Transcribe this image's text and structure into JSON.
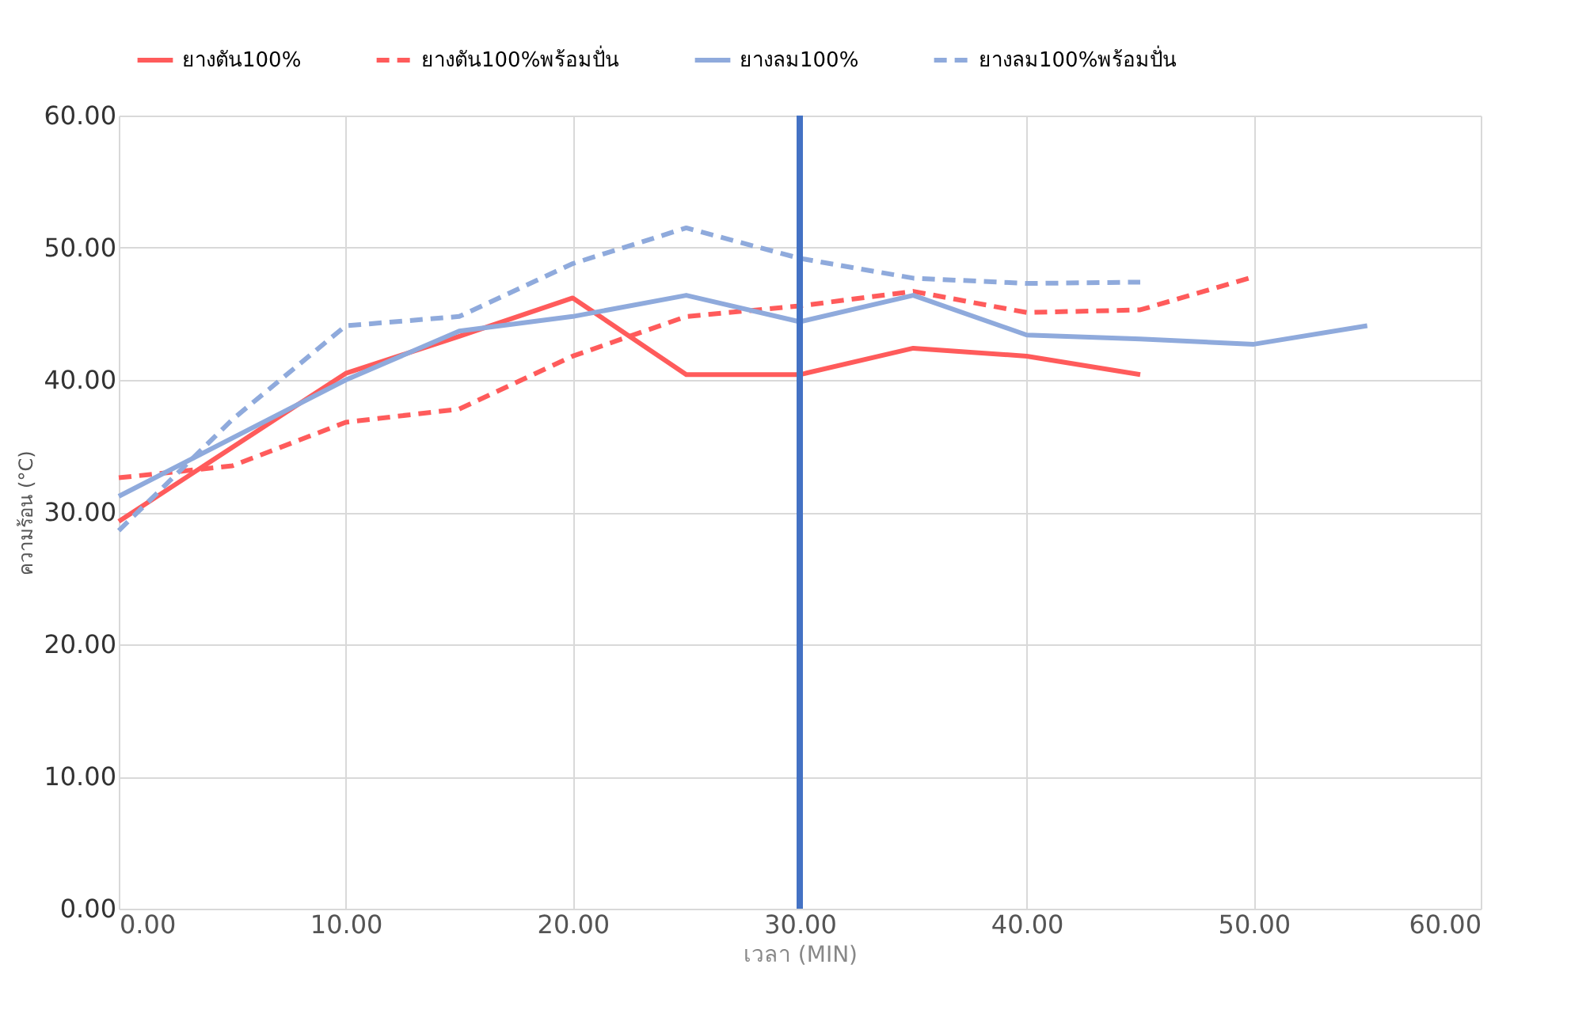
{
  "chart_data": {
    "type": "line",
    "xlabel": "เวลา (MIN)",
    "ylabel": "ความร้อน (°C)",
    "xlim": [
      0,
      60
    ],
    "ylim": [
      0,
      60
    ],
    "xticks": [
      {
        "value": 0,
        "label": "0.00"
      },
      {
        "value": 10,
        "label": "10.00"
      },
      {
        "value": 20,
        "label": "20.00"
      },
      {
        "value": 30,
        "label": "30.00"
      },
      {
        "value": 40,
        "label": "40.00"
      },
      {
        "value": 50,
        "label": "50.00"
      },
      {
        "value": 60,
        "label": "60.00"
      }
    ],
    "yticks": [
      {
        "value": 0,
        "label": "0.00"
      },
      {
        "value": 10,
        "label": "10.00"
      },
      {
        "value": 20,
        "label": "20.00"
      },
      {
        "value": 30,
        "label": "30.00"
      },
      {
        "value": 40,
        "label": "40.00"
      },
      {
        "value": 50,
        "label": "50.00"
      },
      {
        "value": 60,
        "label": "60.00"
      }
    ],
    "grid": true,
    "legend": "top",
    "marker": "none",
    "ref_lines": [
      {
        "axis": "x",
        "value": 30,
        "label": null,
        "color": "#4472c4",
        "line_style": "solid"
      }
    ],
    "series": [
      {
        "name": "ยางตัน100%",
        "color": "#ff5b5b",
        "line_style": "solid",
        "x": [
          0,
          10,
          15,
          20,
          25,
          30,
          35,
          40,
          45
        ],
        "values": [
          29.3,
          40.5,
          43.3,
          46.2,
          40.4,
          40.4,
          42.4,
          41.8,
          40.4
        ]
      },
      {
        "name": "ยางตัน100%พร้อมปั่น",
        "color": "#ff5b5b",
        "line_style": "dashed",
        "x": [
          0,
          5,
          10,
          15,
          20,
          25,
          30,
          35,
          40,
          45,
          50
        ],
        "values": [
          32.6,
          33.5,
          36.8,
          37.8,
          41.8,
          44.8,
          45.6,
          46.7,
          45.1,
          45.3,
          47.8
        ]
      },
      {
        "name": "ยางลม100%",
        "color": "#8faadc",
        "line_style": "solid",
        "x": [
          0,
          10,
          15,
          20,
          25,
          30,
          35,
          40,
          45,
          50,
          55
        ],
        "values": [
          31.2,
          40.0,
          43.7,
          44.8,
          46.4,
          44.4,
          46.4,
          43.4,
          43.1,
          42.7,
          44.1
        ]
      },
      {
        "name": "ยางลม100%พร้อมปั่น",
        "color": "#8faadc",
        "line_style": "dashed",
        "x": [
          0,
          5,
          10,
          15,
          20,
          25,
          30,
          35,
          40,
          45
        ],
        "values": [
          28.6,
          37.0,
          44.1,
          44.8,
          48.8,
          51.5,
          49.2,
          47.7,
          47.3,
          47.4
        ]
      }
    ]
  }
}
